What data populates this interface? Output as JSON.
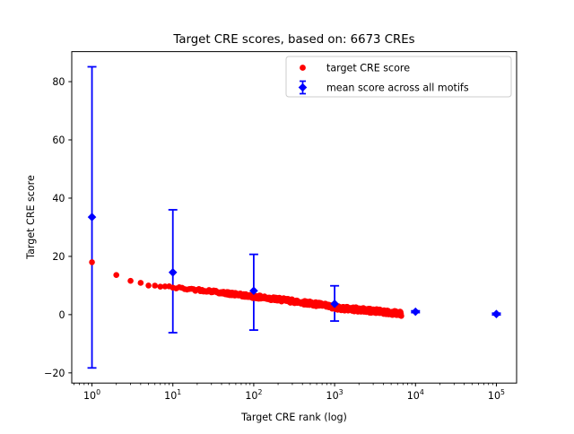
{
  "chart_data": {
    "type": "scatter",
    "title": "Target CRE scores, based on: 6673 CREs",
    "xlabel": "Target CRE rank (log)",
    "ylabel": "Target CRE score",
    "xscale": "log",
    "xlim": [
      0.5623,
      177827
    ],
    "ylim": [
      -23.5,
      90.3
    ],
    "xticks": [
      {
        "v": 1,
        "base": "10",
        "exp": "0"
      },
      {
        "v": 10,
        "base": "10",
        "exp": "1"
      },
      {
        "v": 100,
        "base": "10",
        "exp": "2"
      },
      {
        "v": 1000,
        "base": "10",
        "exp": "3"
      },
      {
        "v": 10000,
        "base": "10",
        "exp": "4"
      },
      {
        "v": 100000,
        "base": "10",
        "exp": "5"
      }
    ],
    "yticks": [
      -20,
      0,
      20,
      40,
      60,
      80
    ],
    "grid": false,
    "background": "#ffffff",
    "frame_color": "#000000",
    "legend": {
      "position": "upper right",
      "border_color": "#cccccc",
      "fill": "#ffffff"
    },
    "series": [
      {
        "name": "target CRE score",
        "color": "#ff0000",
        "marker": "circle",
        "n_points": 6673,
        "note": "6673 red points forming a dense descending band vs log rank; trend anchors sampled from the plot",
        "trend": [
          [
            1,
            18.0
          ],
          [
            2,
            13.6
          ],
          [
            3,
            11.6
          ],
          [
            4,
            10.9
          ],
          [
            5,
            10.2
          ],
          [
            6,
            9.95
          ],
          [
            7,
            9.75
          ],
          [
            8,
            9.6
          ],
          [
            9,
            9.45
          ],
          [
            10,
            9.3
          ],
          [
            15,
            8.85
          ],
          [
            20,
            8.55
          ],
          [
            30,
            8.1
          ],
          [
            50,
            7.2
          ],
          [
            70,
            6.7
          ],
          [
            100,
            6.2
          ],
          [
            150,
            5.65
          ],
          [
            200,
            5.25
          ],
          [
            300,
            4.65
          ],
          [
            500,
            3.85
          ],
          [
            700,
            3.3
          ],
          [
            1000,
            2.4
          ],
          [
            1500,
            2.0
          ],
          [
            2000,
            1.7
          ],
          [
            3000,
            1.25
          ],
          [
            4000,
            0.95
          ],
          [
            5000,
            0.7
          ],
          [
            6000,
            0.5
          ],
          [
            6673,
            0.3
          ]
        ],
        "band_jitter": 0.75
      },
      {
        "name": "mean score across all motifs",
        "color": "#0000ff",
        "marker": "diamond",
        "points": [
          {
            "x": 1,
            "y": 33.5,
            "ylow": -18.3,
            "yhigh": 85.1
          },
          {
            "x": 10,
            "y": 14.5,
            "ylow": -6.2,
            "yhigh": 36.0
          },
          {
            "x": 100,
            "y": 8.2,
            "ylow": -5.3,
            "yhigh": 20.7
          },
          {
            "x": 1000,
            "y": 3.7,
            "ylow": -2.2,
            "yhigh": 9.9
          },
          {
            "x": 10000,
            "y": 1.0,
            "ylow": 0.7,
            "yhigh": 1.3
          },
          {
            "x": 100000,
            "y": 0.2,
            "ylow": -0.1,
            "yhigh": 0.5
          }
        ]
      }
    ]
  }
}
